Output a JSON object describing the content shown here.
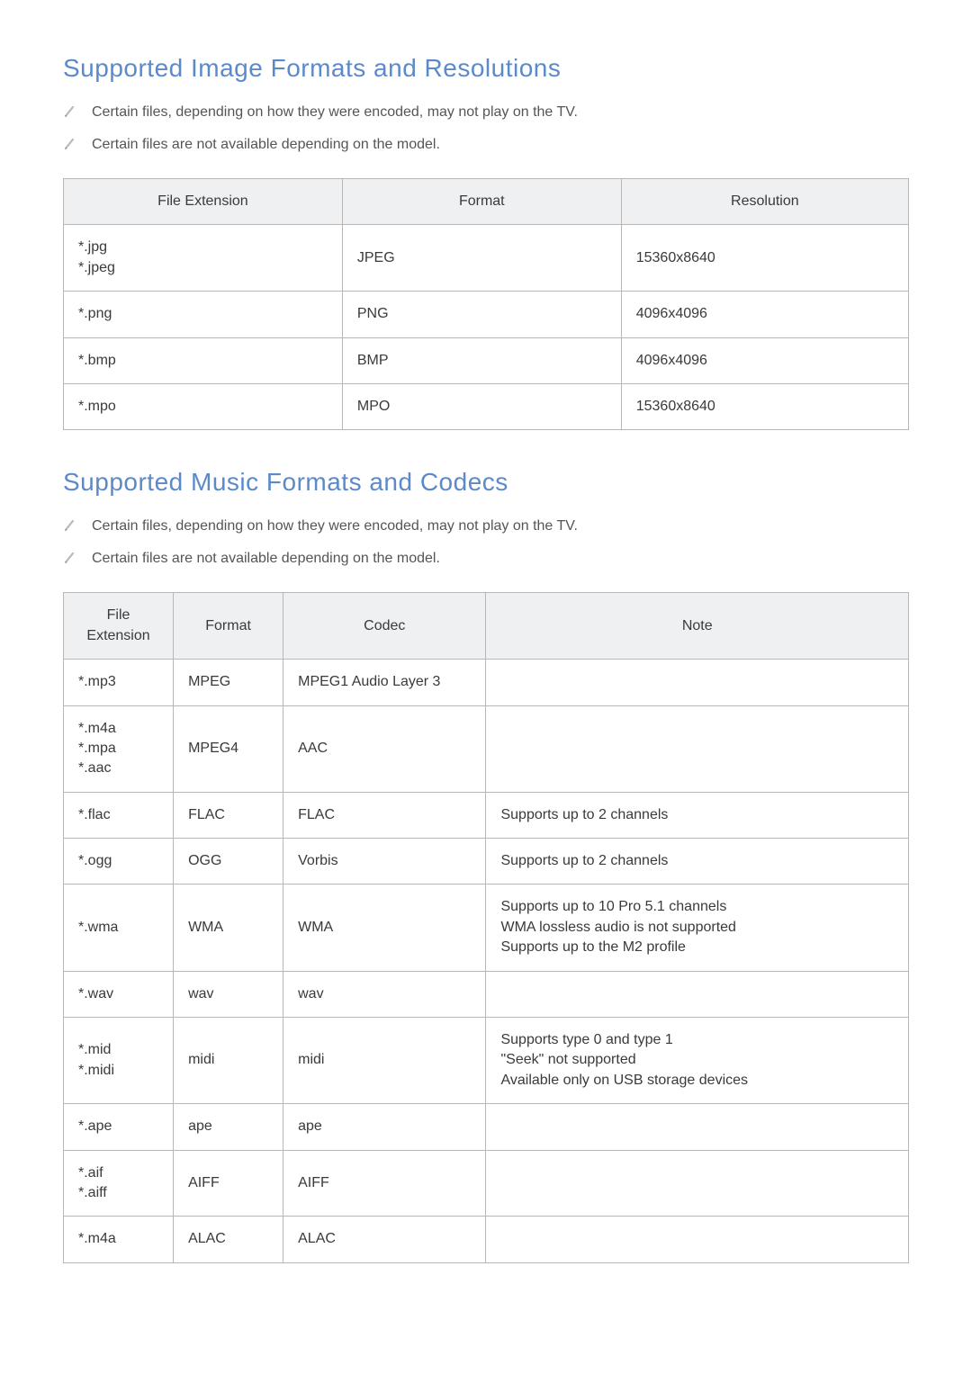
{
  "section1": {
    "title": "Supported Image Formats and Resolutions",
    "title_color": "#5b8acb",
    "notes": [
      "Certain files, depending on how they were encoded, may not play on the TV.",
      "Certain files are not available depending on the model."
    ],
    "table": {
      "columns": [
        "File Extension",
        "Format",
        "Resolution"
      ],
      "col_widths": [
        "33%",
        "33%",
        "34%"
      ],
      "rows": [
        [
          "*.jpg\n*.jpeg",
          "JPEG",
          "15360x8640"
        ],
        [
          "*.png",
          "PNG",
          "4096x4096"
        ],
        [
          "*.bmp",
          "BMP",
          "4096x4096"
        ],
        [
          "*.mpo",
          "MPO",
          "15360x8640"
        ]
      ]
    }
  },
  "section2": {
    "title": "Supported Music Formats and Codecs",
    "title_color": "#5b8acb",
    "notes": [
      "Certain files, depending on how they were encoded, may not play on the TV.",
      "Certain files are not available depending on the model."
    ],
    "table": {
      "columns": [
        "File Extension",
        "Format",
        "Codec",
        "Note"
      ],
      "col_widths": [
        "13%",
        "13%",
        "24%",
        "50%"
      ],
      "rows": [
        [
          "*.mp3",
          "MPEG",
          "MPEG1 Audio Layer 3",
          ""
        ],
        [
          "*.m4a\n*.mpa\n*.aac",
          "MPEG4",
          "AAC",
          ""
        ],
        [
          "*.flac",
          "FLAC",
          "FLAC",
          "Supports up to 2 channels"
        ],
        [
          "*.ogg",
          "OGG",
          "Vorbis",
          "Supports up to 2 channels"
        ],
        [
          "*.wma",
          "WMA",
          "WMA",
          "Supports up to 10 Pro 5.1 channels\nWMA lossless audio is not supported\nSupports up to the M2 profile"
        ],
        [
          "*.wav",
          "wav",
          "wav",
          ""
        ],
        [
          "*.mid\n*.midi",
          "midi",
          "midi",
          "Supports type 0 and type 1\n\"Seek\" not supported\nAvailable only on USB storage devices"
        ],
        [
          "*.ape",
          "ape",
          "ape",
          ""
        ],
        [
          "*.aif\n*.aiff",
          "AIFF",
          "AIFF",
          ""
        ],
        [
          "*.m4a",
          "ALAC",
          "ALAC",
          ""
        ]
      ]
    }
  },
  "styling": {
    "border_color": "#b7b7b7",
    "header_bg": "#eff0f1",
    "body_bg": "#ffffff",
    "text_color": "#3a3a3a",
    "note_color": "#555555",
    "note_icon_color": "#9aa2a8",
    "title_fontsize": 28,
    "cell_fontsize": 16
  }
}
